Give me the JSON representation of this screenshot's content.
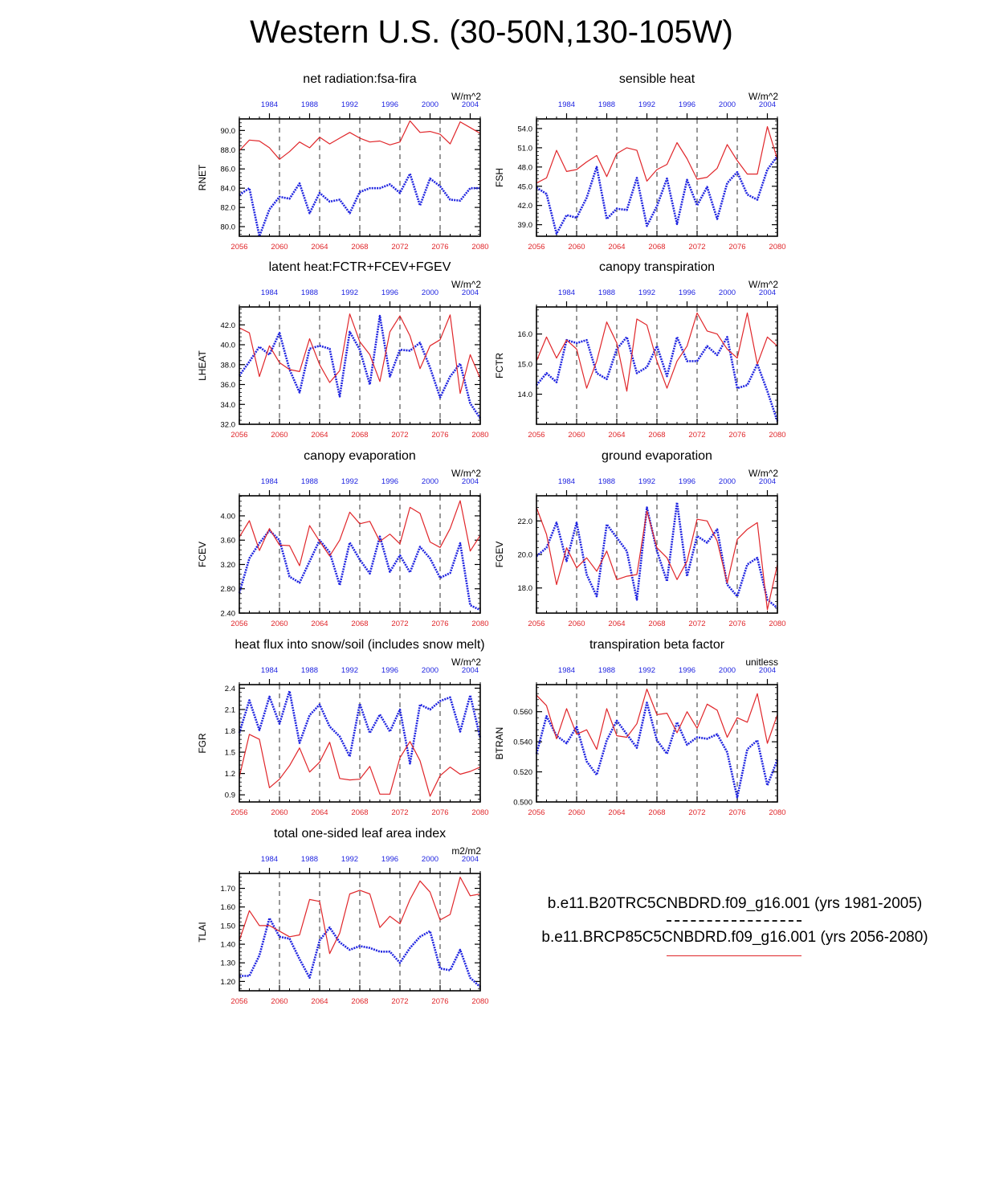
{
  "title": "Western U.S. (30-50N,130-105W)",
  "colors": {
    "historical": "#1f24e0",
    "future": "#e0262a",
    "axis": "#000000"
  },
  "top_axis": {
    "ticks": [
      "1984",
      "1988",
      "1992",
      "1996",
      "2000",
      "2004"
    ],
    "range": [
      1981,
      2005
    ]
  },
  "bottom_axis": {
    "ticks": [
      "2056",
      "2060",
      "2064",
      "2068",
      "2072",
      "2076",
      "2080"
    ],
    "range": [
      2056,
      2080
    ]
  },
  "legend": {
    "historical": "b.e11.B20TRC5CNBDRD.f09_g16.001 (yrs 1981-2005)",
    "future": "b.e11.BRCP85C5CNBDRD.f09_g16.001 (yrs 2056-2080)"
  },
  "chart_data": [
    {
      "type": "line",
      "title": "net radiation:fsa-fira",
      "ylabel": "RNET",
      "units": "W/m^2",
      "ylim": [
        79,
        91.2
      ],
      "yticks": [
        80,
        82,
        84,
        86,
        88,
        90
      ],
      "ytick_labels": [
        "80.0",
        "82.0",
        "84.0",
        "86.0",
        "88.0",
        "90.0"
      ],
      "series": [
        {
          "values": [
            83.3,
            84.0,
            79.0,
            81.8,
            83.1,
            82.9,
            84.5,
            81.4,
            83.5,
            82.6,
            82.8,
            81.4,
            83.6,
            84.0,
            84.0,
            84.4,
            83.5,
            85.5,
            82.2,
            85.0,
            84.2,
            82.8,
            82.7,
            84.0,
            84.0
          ]
        },
        {
          "values": [
            87.9,
            89.0,
            88.9,
            88.2,
            87.0,
            87.8,
            88.8,
            88.2,
            89.3,
            88.6,
            89.2,
            89.8,
            89.2,
            88.8,
            88.9,
            88.5,
            88.8,
            91.0,
            89.8,
            89.9,
            89.6,
            88.6,
            90.9,
            90.3,
            89.7
          ]
        }
      ]
    },
    {
      "type": "line",
      "title": "sensible heat",
      "ylabel": "FSH",
      "units": "W/m^2",
      "ylim": [
        37.2,
        55.5
      ],
      "yticks": [
        39,
        42,
        45,
        48,
        51,
        54
      ],
      "ytick_labels": [
        "39.0",
        "42.0",
        "45.0",
        "48.0",
        "51.0",
        "54.0"
      ],
      "series": [
        {
          "values": [
            44.8,
            43.8,
            37.6,
            40.5,
            40.1,
            43.2,
            48.0,
            39.9,
            41.5,
            41.3,
            46.3,
            38.8,
            41.9,
            46.2,
            39.1,
            46.0,
            42.0,
            44.9,
            39.9,
            45.5,
            47.2,
            43.7,
            42.9,
            47.6,
            49.7
          ]
        },
        {
          "values": [
            45.5,
            46.3,
            50.6,
            47.3,
            47.6,
            48.8,
            49.8,
            46.5,
            50.1,
            51.0,
            50.6,
            45.8,
            47.6,
            48.4,
            51.8,
            49.3,
            46.1,
            46.4,
            47.8,
            51.5,
            49.0,
            46.9,
            46.9,
            54.3,
            49.2
          ]
        }
      ]
    },
    {
      "type": "line",
      "title": "latent heat:FCTR+FCEV+FGEV",
      "ylabel": "LHEAT",
      "units": "W/m^2",
      "ylim": [
        32,
        43.8
      ],
      "yticks": [
        32,
        34,
        36,
        38,
        40,
        42
      ],
      "ytick_labels": [
        "32.0",
        "34.0",
        "36.0",
        "38.0",
        "40.0",
        "42.0"
      ],
      "series": [
        {
          "values": [
            36.9,
            38.3,
            39.8,
            39.0,
            41.2,
            37.5,
            35.2,
            39.6,
            39.9,
            39.6,
            34.8,
            41.3,
            39.5,
            36.0,
            42.9,
            36.8,
            39.5,
            39.4,
            40.2,
            37.7,
            34.7,
            36.8,
            38.1,
            34.1,
            32.6
          ]
        },
        {
          "values": [
            41.7,
            41.2,
            36.8,
            39.9,
            38.2,
            37.5,
            37.3,
            40.6,
            38.0,
            36.2,
            37.4,
            43.1,
            40.3,
            39.0,
            36.3,
            41.3,
            42.9,
            40.9,
            37.6,
            39.9,
            40.5,
            43.0,
            35.1,
            39.0,
            36.6
          ]
        }
      ]
    },
    {
      "type": "line",
      "title": "canopy transpiration",
      "ylabel": "FCTR",
      "units": "W/m^2",
      "ylim": [
        13,
        16.9
      ],
      "yticks": [
        14,
        15,
        16
      ],
      "ytick_labels": [
        "14.0",
        "15.0",
        "16.0"
      ],
      "series": [
        {
          "values": [
            14.3,
            14.7,
            14.4,
            15.8,
            15.7,
            15.8,
            14.7,
            14.5,
            15.5,
            15.9,
            14.7,
            14.9,
            15.6,
            14.6,
            15.9,
            15.1,
            15.1,
            15.6,
            15.3,
            15.9,
            14.2,
            14.3,
            15.0,
            14.1,
            13.1
          ]
        },
        {
          "values": [
            15.1,
            15.9,
            15.2,
            15.8,
            15.5,
            14.2,
            15.1,
            16.4,
            15.7,
            14.1,
            16.5,
            16.3,
            15.1,
            14.2,
            15.1,
            15.6,
            16.7,
            16.1,
            16.0,
            15.5,
            15.2,
            16.7,
            15.0,
            15.9,
            15.6
          ]
        }
      ]
    },
    {
      "type": "line",
      "title": "canopy evaporation",
      "ylabel": "FCEV",
      "units": "W/m^2",
      "ylim": [
        2.4,
        4.33
      ],
      "yticks": [
        2.4,
        2.8,
        3.2,
        3.6,
        4.0
      ],
      "ytick_labels": [
        "2.40",
        "2.80",
        "3.20",
        "3.60",
        "4.00"
      ],
      "series": [
        {
          "values": [
            2.73,
            3.3,
            3.55,
            3.76,
            3.6,
            3.0,
            2.9,
            3.25,
            3.6,
            3.4,
            2.86,
            3.56,
            3.28,
            3.05,
            3.66,
            3.08,
            3.35,
            3.07,
            3.49,
            3.3,
            2.98,
            3.06,
            3.55,
            2.53,
            2.45
          ]
        },
        {
          "values": [
            3.65,
            3.92,
            3.43,
            3.79,
            3.52,
            3.51,
            3.18,
            3.84,
            3.58,
            3.34,
            3.6,
            4.06,
            3.87,
            3.91,
            3.58,
            3.7,
            3.54,
            4.14,
            4.04,
            3.57,
            3.48,
            3.79,
            4.25,
            3.42,
            3.68
          ]
        }
      ]
    },
    {
      "type": "line",
      "title": "ground evaporation",
      "ylabel": "FGEV",
      "units": "W/m^2",
      "ylim": [
        16.5,
        23.5
      ],
      "yticks": [
        18,
        20,
        22
      ],
      "ytick_labels": [
        "18.0",
        "20.0",
        "22.0"
      ],
      "series": [
        {
          "values": [
            19.9,
            20.4,
            21.9,
            19.6,
            21.9,
            18.8,
            17.5,
            21.8,
            21.0,
            20.2,
            17.3,
            22.8,
            20.2,
            18.4,
            23.1,
            18.7,
            21.1,
            20.7,
            21.5,
            18.2,
            17.5,
            19.4,
            19.8,
            17.3,
            16.8
          ]
        },
        {
          "values": [
            22.8,
            21.2,
            18.2,
            20.4,
            19.2,
            19.8,
            19.0,
            20.2,
            18.5,
            18.7,
            18.8,
            22.6,
            20.4,
            19.8,
            18.5,
            19.6,
            22.1,
            22.0,
            20.8,
            18.3,
            20.9,
            21.5,
            21.9,
            16.7,
            19.4
          ]
        }
      ]
    },
    {
      "type": "line",
      "title": "heat flux into snow/soil (includes snow melt)",
      "ylabel": "FGR",
      "units": "W/m^2",
      "ylim": [
        0.8,
        2.45
      ],
      "yticks": [
        0.9,
        1.2,
        1.5,
        1.8,
        2.1,
        2.4
      ],
      "ytick_labels": [
        "0.9",
        "1.2",
        "1.5",
        "1.8",
        "2.1",
        "2.4"
      ],
      "series": [
        {
          "values": [
            1.77,
            2.23,
            1.81,
            2.28,
            1.9,
            2.36,
            1.63,
            2.02,
            2.17,
            1.86,
            1.72,
            1.44,
            2.18,
            1.77,
            2.03,
            1.79,
            2.1,
            1.34,
            2.17,
            2.1,
            2.22,
            2.27,
            1.79,
            2.3,
            1.7
          ]
        },
        {
          "values": [
            1.15,
            1.75,
            1.68,
            1.0,
            1.12,
            1.31,
            1.56,
            1.22,
            1.36,
            1.64,
            1.13,
            1.11,
            1.12,
            1.3,
            0.91,
            0.91,
            1.42,
            1.65,
            1.38,
            0.88,
            1.17,
            1.29,
            1.19,
            1.23,
            1.29
          ]
        }
      ]
    },
    {
      "type": "line",
      "title": "transpiration beta factor",
      "ylabel": "BTRAN",
      "units": "unitless",
      "ylim": [
        0.5,
        0.578
      ],
      "yticks": [
        0.5,
        0.52,
        0.54,
        0.56
      ],
      "ytick_labels": [
        "0.500",
        "0.520",
        "0.540",
        "0.560"
      ],
      "series": [
        {
          "values": [
            0.532,
            0.557,
            0.544,
            0.539,
            0.55,
            0.527,
            0.518,
            0.541,
            0.554,
            0.545,
            0.536,
            0.566,
            0.541,
            0.532,
            0.553,
            0.538,
            0.543,
            0.542,
            0.545,
            0.533,
            0.503,
            0.535,
            0.541,
            0.511,
            0.528
          ]
        },
        {
          "values": [
            0.571,
            0.564,
            0.542,
            0.562,
            0.545,
            0.548,
            0.535,
            0.562,
            0.544,
            0.543,
            0.552,
            0.575,
            0.558,
            0.559,
            0.546,
            0.56,
            0.549,
            0.565,
            0.561,
            0.543,
            0.556,
            0.553,
            0.572,
            0.539,
            0.558
          ]
        }
      ]
    },
    {
      "type": "line",
      "title": "total one-sided leaf area index",
      "ylabel": "TLAI",
      "units": "m2/m2",
      "ylim": [
        1.15,
        1.78
      ],
      "yticks": [
        1.2,
        1.3,
        1.4,
        1.5,
        1.6,
        1.7
      ],
      "ytick_labels": [
        "1.20",
        "1.30",
        "1.40",
        "1.50",
        "1.60",
        "1.70"
      ],
      "series": [
        {
          "values": [
            1.23,
            1.23,
            1.34,
            1.54,
            1.44,
            1.43,
            1.32,
            1.22,
            1.42,
            1.49,
            1.41,
            1.37,
            1.39,
            1.38,
            1.36,
            1.36,
            1.3,
            1.38,
            1.44,
            1.47,
            1.27,
            1.26,
            1.37,
            1.22,
            1.17
          ]
        },
        {
          "values": [
            1.42,
            1.58,
            1.5,
            1.5,
            1.47,
            1.44,
            1.45,
            1.64,
            1.63,
            1.35,
            1.46,
            1.67,
            1.69,
            1.67,
            1.49,
            1.55,
            1.51,
            1.64,
            1.74,
            1.68,
            1.53,
            1.56,
            1.76,
            1.66,
            1.67
          ]
        }
      ]
    }
  ]
}
